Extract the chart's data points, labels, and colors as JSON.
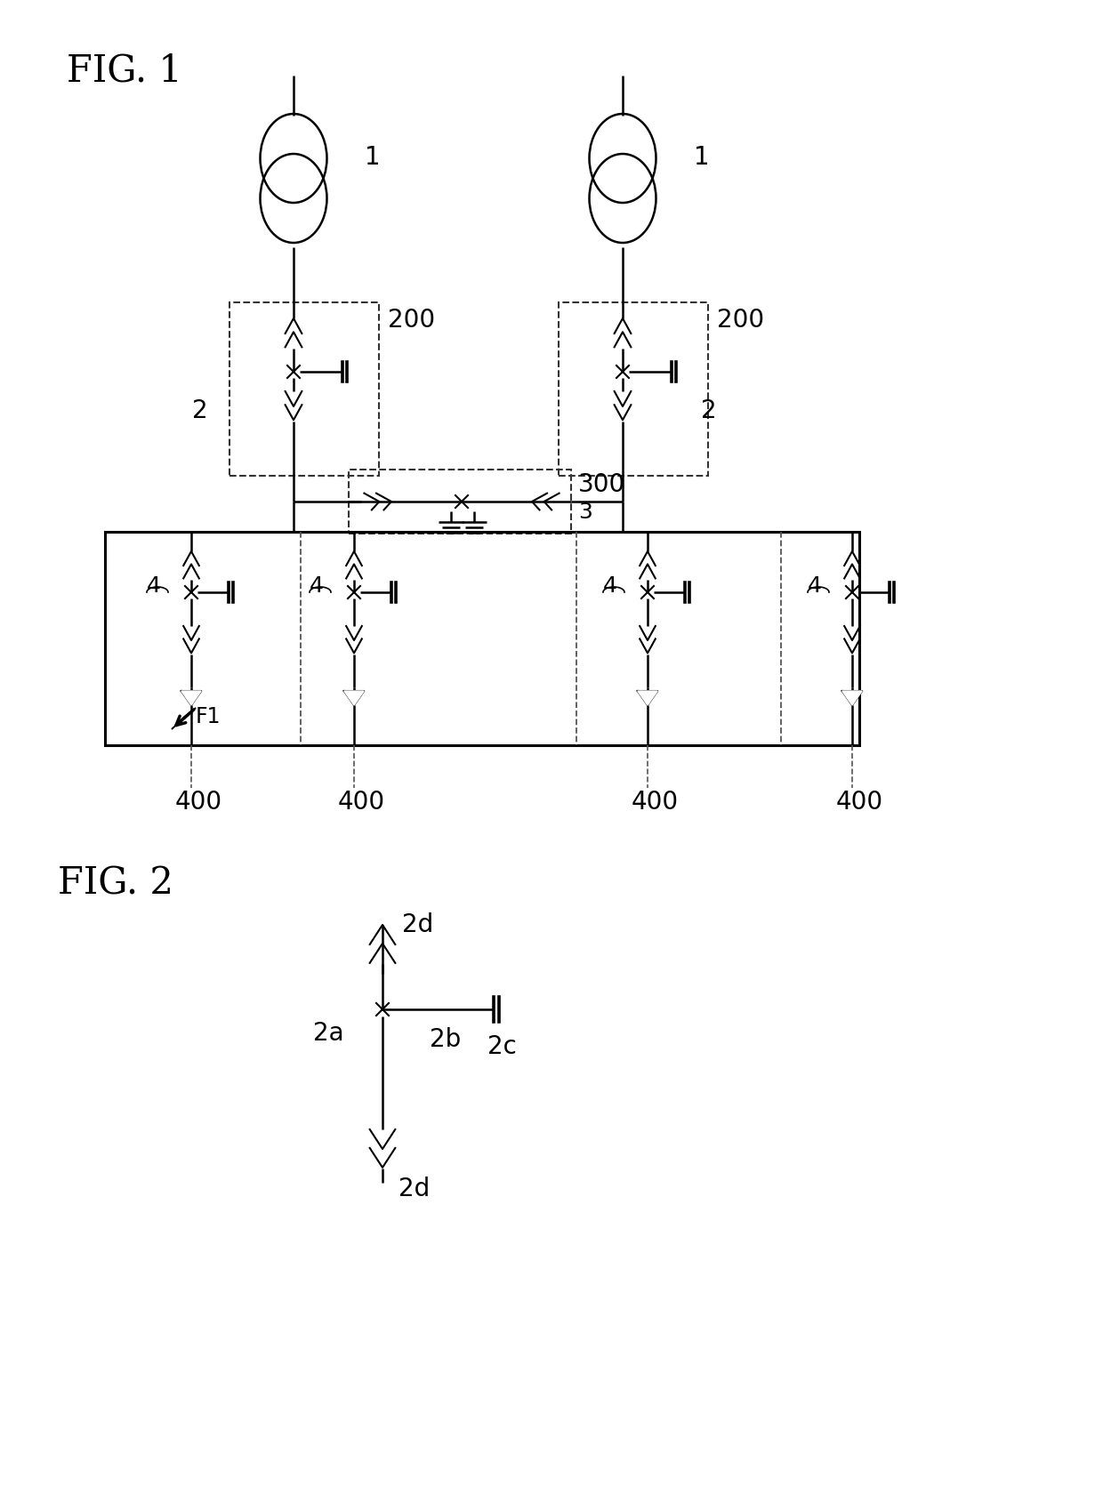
{
  "fig_label1": "FIG. 1",
  "fig_label2": "FIG. 2",
  "label_1": "1",
  "label_2": "2",
  "label_3": "3",
  "label_4": "4",
  "label_200": "200",
  "label_300": "300",
  "label_400": "400",
  "label_F1": "F1",
  "label_2a": "2a",
  "label_2b": "2b",
  "label_2c": "2c",
  "label_2d": "2d",
  "bg_color": "#ffffff",
  "line_color": "#000000",
  "dashed_color": "#555555"
}
